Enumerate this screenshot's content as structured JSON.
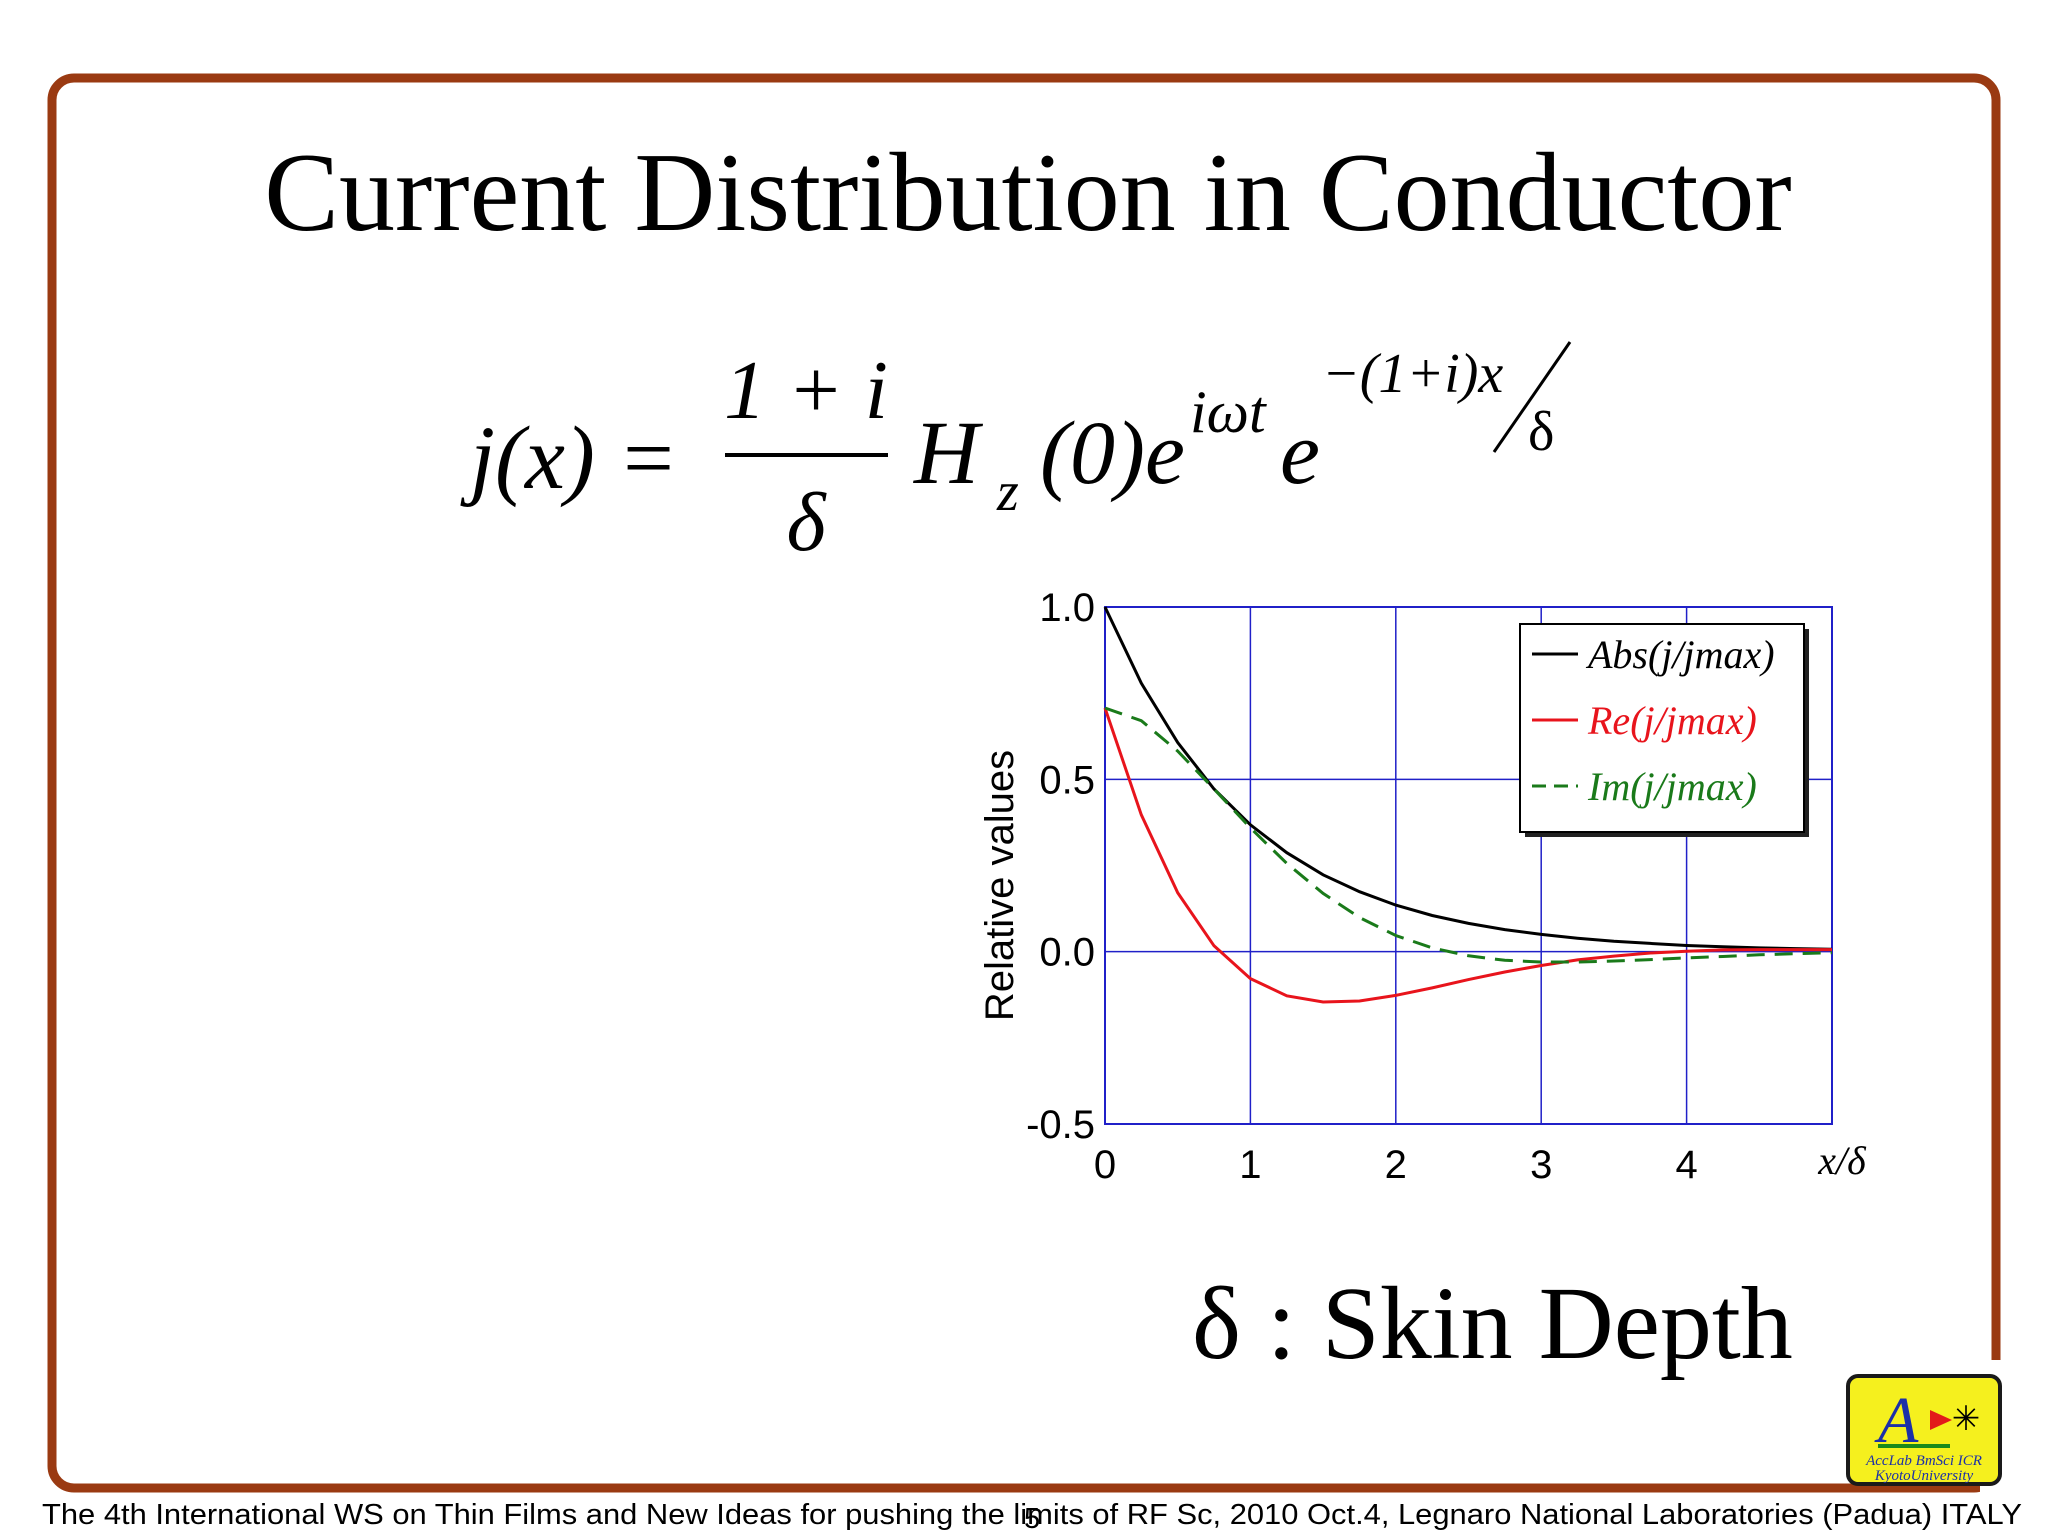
{
  "slide": {
    "title": "Current Distribution in Conductor"
  },
  "equation": {
    "lhs": "j(x) =",
    "numerator": "1 + i",
    "denominator": "δ",
    "field": "H",
    "field_sub": "z",
    "field_arg": "(0)e",
    "sup1": "iωt",
    "exp_base": "e",
    "sup2": "−(1+i)x",
    "sup2_den": "δ"
  },
  "chart_data": {
    "type": "line",
    "ylabel": "Relative values",
    "xlabel": "x/δ",
    "x": [
      0,
      0.25,
      0.5,
      0.75,
      1,
      1.25,
      1.5,
      1.75,
      2,
      2.25,
      2.5,
      2.75,
      3,
      3.25,
      3.5,
      3.75,
      4,
      4.25,
      4.5,
      4.75,
      5
    ],
    "series": [
      {
        "name": "Abs(j/jmax)",
        "color": "#000000",
        "line_style": "solid",
        "values": [
          1,
          0.779,
          0.607,
          0.472,
          0.368,
          0.287,
          0.223,
          0.174,
          0.135,
          0.105,
          0.082,
          0.064,
          0.05,
          0.039,
          0.03,
          0.024,
          0.018,
          0.014,
          0.011,
          0.009,
          0.007
        ]
      },
      {
        "name": "Re(j/jmax)",
        "color": "#e8141c",
        "line_style": "solid",
        "values": [
          0.707,
          0.397,
          0.171,
          0.017,
          -0.078,
          -0.128,
          -0.146,
          -0.143,
          -0.127,
          -0.105,
          -0.081,
          -0.059,
          -0.04,
          -0.024,
          -0.013,
          -0.004,
          0.001,
          0.005,
          0.006,
          0.006,
          0.006
        ]
      },
      {
        "name": "Im(j/jmax)",
        "color": "#1a7a1a",
        "line_style": "dashed",
        "values": [
          0.707,
          0.67,
          0.582,
          0.472,
          0.359,
          0.256,
          0.169,
          0.099,
          0.047,
          0.011,
          -0.012,
          -0.025,
          -0.03,
          -0.03,
          -0.027,
          -0.023,
          -0.018,
          -0.014,
          -0.009,
          -0.006,
          -0.003
        ]
      }
    ],
    "xlim": [
      0,
      5
    ],
    "ylim": [
      -0.5,
      1
    ],
    "xticks": [
      0,
      1,
      2,
      3,
      4
    ],
    "yticks": [
      -0.5,
      {
        "value": 0,
        "label": "0.0"
      },
      0.5,
      {
        "value": 1,
        "label": "1.0"
      }
    ],
    "grid": true,
    "grid_color": "#2020c8",
    "legend": "upper right"
  },
  "note": "δ : Skin Depth",
  "logo": {
    "line1": "AccLab  BmSci  ICR",
    "line2": "KyotoUniversity"
  },
  "footer": {
    "text": "The 4th International WS on Thin Films  and New Ideas for pushing the limits of RF Sc, 2010 Oct.4, Legnaro National Laboratories (Padua) ITALY",
    "page_number": "5"
  }
}
